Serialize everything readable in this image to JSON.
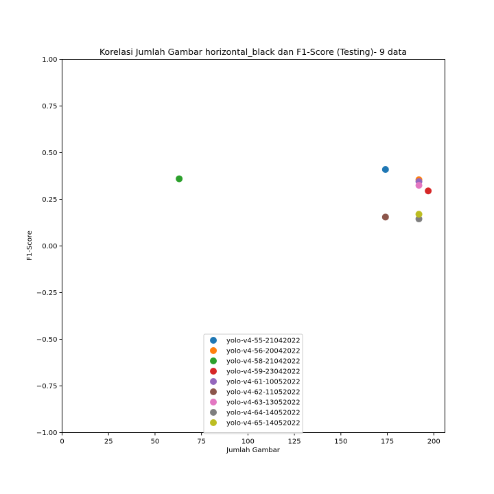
{
  "chart_data": {
    "type": "scatter",
    "title": "Korelasi Jumlah Gambar horizontal_black dan F1-Score (Testing)- 9 data",
    "xlabel": "Jumlah Gambar",
    "ylabel": "F1-Score",
    "xlim": [
      0,
      206
    ],
    "ylim": [
      -1.0,
      1.0
    ],
    "xticks": [
      0,
      25,
      50,
      75,
      100,
      125,
      150,
      175,
      200
    ],
    "xtick_labels": [
      "0",
      "25",
      "50",
      "75",
      "100",
      "125",
      "150",
      "175",
      "200"
    ],
    "yticks": [
      -1.0,
      -0.75,
      -0.5,
      -0.25,
      0.0,
      0.25,
      0.5,
      0.75,
      1.0
    ],
    "ytick_labels": [
      "−1.00",
      "−0.75",
      "−0.50",
      "−0.25",
      "0.00",
      "0.25",
      "0.50",
      "0.75",
      "1.00"
    ],
    "grid": false,
    "legend_position": "bottom-center",
    "series": [
      {
        "name": "yolo-v4-55-21042022",
        "color": "#1f77b4",
        "points": [
          {
            "x": 174,
            "y": 0.41
          }
        ]
      },
      {
        "name": "yolo-v4-56-20042022",
        "color": "#ff7f0e",
        "points": [
          {
            "x": 192,
            "y": 0.355
          }
        ]
      },
      {
        "name": "yolo-v4-58-21042022",
        "color": "#2ca02c",
        "points": [
          {
            "x": 63,
            "y": 0.36
          }
        ]
      },
      {
        "name": "yolo-v4-59-23042022",
        "color": "#d62728",
        "points": [
          {
            "x": 197,
            "y": 0.295
          }
        ]
      },
      {
        "name": "yolo-v4-61-10052022",
        "color": "#9467bd",
        "points": [
          {
            "x": 192,
            "y": 0.345
          }
        ]
      },
      {
        "name": "yolo-v4-62-11052022",
        "color": "#8c564b",
        "points": [
          {
            "x": 174,
            "y": 0.155
          }
        ]
      },
      {
        "name": "yolo-v4-63-13052022",
        "color": "#e377c2",
        "points": [
          {
            "x": 192,
            "y": 0.325
          }
        ]
      },
      {
        "name": "yolo-v4-64-14052022",
        "color": "#7f7f7f",
        "points": [
          {
            "x": 192,
            "y": 0.145
          }
        ]
      },
      {
        "name": "yolo-v4-65-14052022",
        "color": "#bcbd22",
        "points": [
          {
            "x": 192,
            "y": 0.17
          }
        ]
      }
    ]
  }
}
